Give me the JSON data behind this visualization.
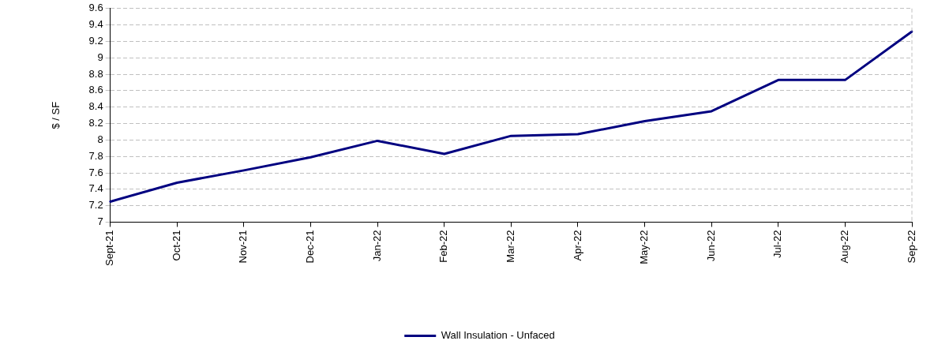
{
  "chart_data": {
    "type": "line",
    "ylabel": "$ / SF",
    "categories": [
      "Sept-21",
      "Oct-21",
      "Nov-21",
      "Dec-21",
      "Jan-22",
      "Feb-22",
      "Mar-22",
      "Apr-22",
      "May-22",
      "Jun-22",
      "Jul-22",
      "Aug-22",
      "Sep-22"
    ],
    "series": [
      {
        "name": "Wall Insulation - Unfaced",
        "color": "#000080",
        "values": [
          7.25,
          7.48,
          7.63,
          7.79,
          7.99,
          7.83,
          8.05,
          8.07,
          8.23,
          8.35,
          8.73,
          8.73,
          9.32
        ]
      }
    ],
    "ylim": [
      7,
      9.6
    ],
    "yticks": [
      7,
      7.2,
      7.4,
      7.6,
      7.8,
      8,
      8.2,
      8.4,
      8.6,
      8.8,
      9,
      9.2,
      9.4,
      9.6
    ],
    "grid": "y",
    "legend": "bottom",
    "marker": "none",
    "line_style": "solid"
  }
}
